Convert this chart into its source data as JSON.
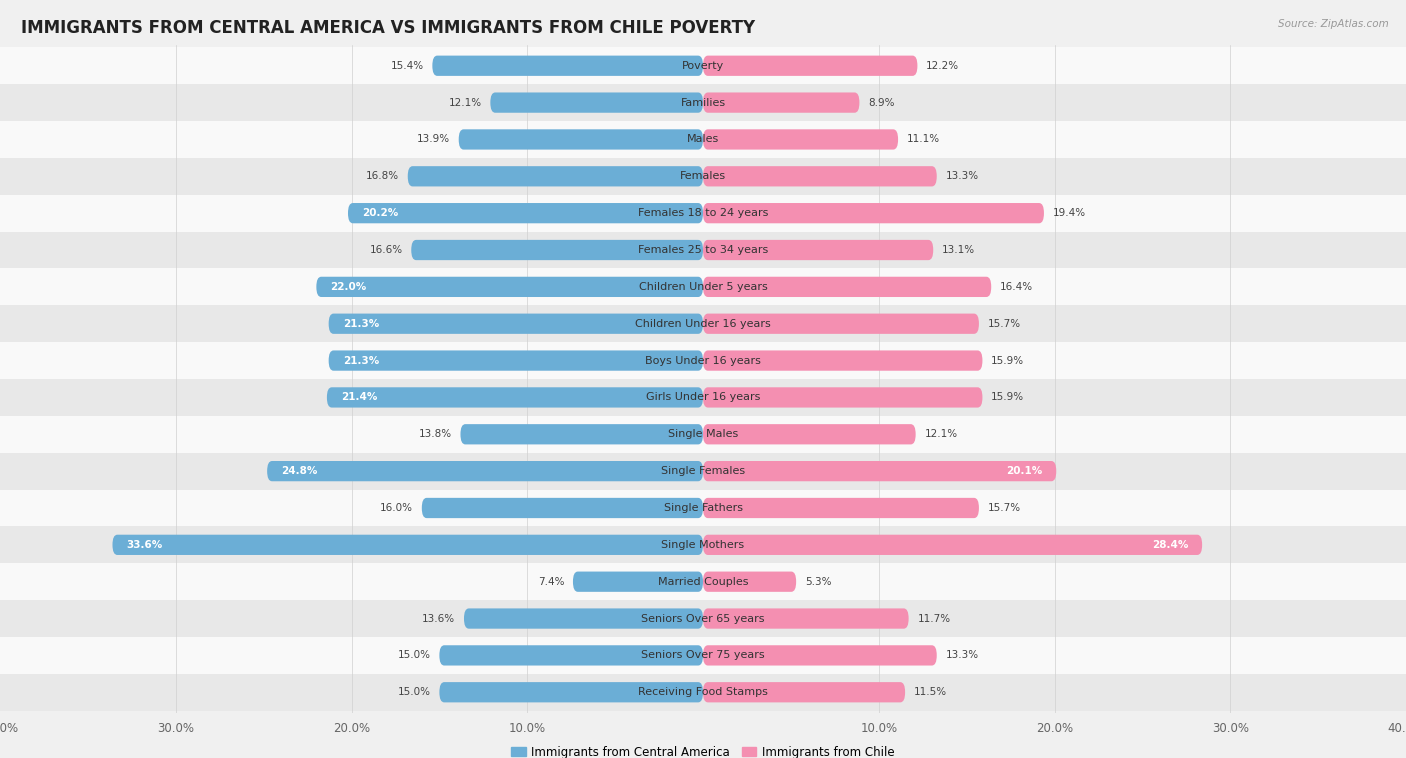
{
  "title": "IMMIGRANTS FROM CENTRAL AMERICA VS IMMIGRANTS FROM CHILE POVERTY",
  "source": "Source: ZipAtlas.com",
  "categories": [
    "Poverty",
    "Families",
    "Males",
    "Females",
    "Females 18 to 24 years",
    "Females 25 to 34 years",
    "Children Under 5 years",
    "Children Under 16 years",
    "Boys Under 16 years",
    "Girls Under 16 years",
    "Single Males",
    "Single Females",
    "Single Fathers",
    "Single Mothers",
    "Married Couples",
    "Seniors Over 65 years",
    "Seniors Over 75 years",
    "Receiving Food Stamps"
  ],
  "left_values": [
    15.4,
    12.1,
    13.9,
    16.8,
    20.2,
    16.6,
    22.0,
    21.3,
    21.3,
    21.4,
    13.8,
    24.8,
    16.0,
    33.6,
    7.4,
    13.6,
    15.0,
    15.0
  ],
  "right_values": [
    12.2,
    8.9,
    11.1,
    13.3,
    19.4,
    13.1,
    16.4,
    15.7,
    15.9,
    15.9,
    12.1,
    20.1,
    15.7,
    28.4,
    5.3,
    11.7,
    13.3,
    11.5
  ],
  "left_color": "#6baed6",
  "right_color": "#f48fb1",
  "left_label": "Immigrants from Central America",
  "right_label": "Immigrants from Chile",
  "x_max": 40.0,
  "bg_color": "#f0f0f0",
  "row_bg_light": "#f9f9f9",
  "row_bg_dark": "#e8e8e8",
  "title_fontsize": 12,
  "label_fontsize": 8,
  "value_fontsize": 7.5,
  "axis_label_fontsize": 8.5,
  "inside_label_threshold": 20.0,
  "inside_label_color": "white",
  "outside_label_color": "#444444"
}
